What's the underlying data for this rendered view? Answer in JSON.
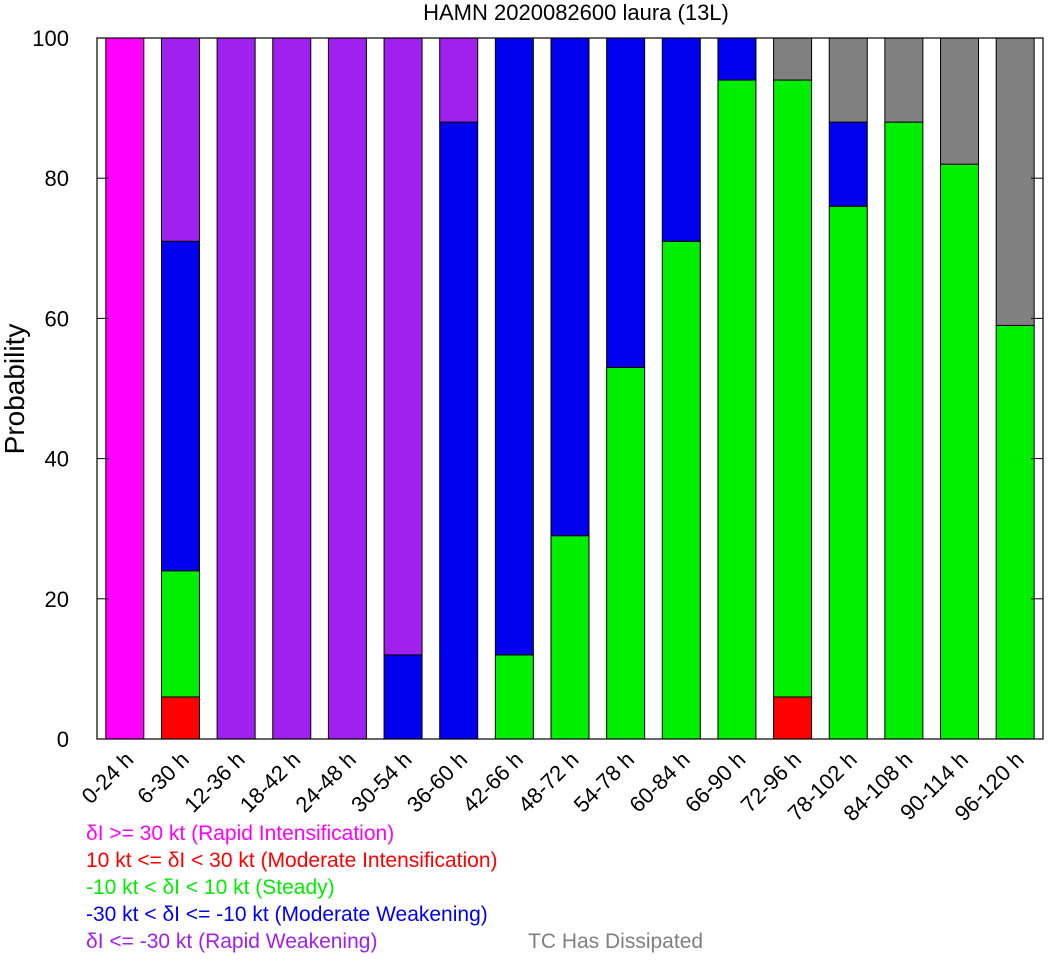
{
  "chart_data": {
    "type": "bar",
    "stacked": true,
    "title": "HAMN 2020082600 laura (13L)",
    "ylabel": "Probability",
    "xlabel": "",
    "ylim": [
      0,
      100
    ],
    "yticks": [
      "0",
      "20",
      "40",
      "60",
      "80",
      "100"
    ],
    "categories": [
      "0-24 h",
      "6-30 h",
      "12-36 h",
      "18-42 h",
      "24-48 h",
      "30-54 h",
      "36-60 h",
      "42-66 h",
      "48-72 h",
      "54-78 h",
      "60-84 h",
      "66-90 h",
      "72-96 h",
      "78-102 h",
      "84-108 h",
      "90-114 h",
      "96-120 h"
    ],
    "series": [
      {
        "name": "δI >= 30 kt (Rapid Intensification)",
        "color": "#ff00ff",
        "values": [
          100,
          0,
          0,
          0,
          0,
          0,
          0,
          0,
          0,
          0,
          0,
          0,
          0,
          0,
          0,
          0,
          0
        ]
      },
      {
        "name": "10 kt <= δI < 30 kt (Moderate Intensification)",
        "color": "#ff0000",
        "values": [
          0,
          6,
          0,
          0,
          0,
          0,
          0,
          0,
          0,
          0,
          0,
          0,
          6,
          0,
          0,
          0,
          0
        ]
      },
      {
        "name": "-10 kt < δI < 10 kt (Steady)",
        "color": "#00ee00",
        "values": [
          0,
          18,
          0,
          0,
          0,
          0,
          0,
          12,
          29,
          53,
          71,
          94,
          88,
          76,
          88,
          82,
          59
        ]
      },
      {
        "name": "-30 kt < δI <= -10 kt (Moderate Weakening)",
        "color": "#0000ee",
        "values": [
          0,
          47,
          0,
          0,
          0,
          12,
          88,
          88,
          71,
          47,
          29,
          6,
          0,
          12,
          0,
          0,
          0
        ]
      },
      {
        "name": "δI <= -30 kt (Rapid Weakening)",
        "color": "#a020f0",
        "values": [
          0,
          29,
          100,
          100,
          100,
          88,
          12,
          0,
          0,
          0,
          0,
          0,
          0,
          0,
          0,
          0,
          0
        ]
      },
      {
        "name": "TC Has Dissipated",
        "color": "#808080",
        "values": [
          0,
          0,
          0,
          0,
          0,
          0,
          0,
          0,
          0,
          0,
          0,
          0,
          6,
          12,
          12,
          18,
          41
        ]
      }
    ],
    "legend_position": "bottom-left"
  }
}
